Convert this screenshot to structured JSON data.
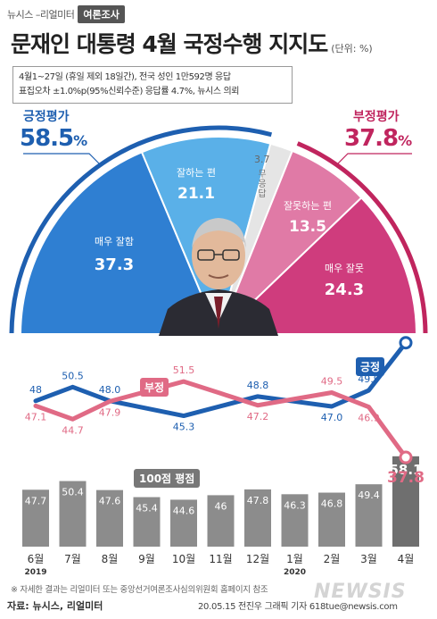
{
  "header": {
    "brand_main": "뉴시스 –리얼미터",
    "brand_tag": "여론조사",
    "title": "문재인 대통령 4월 국정수행 지지도",
    "unit": "(단위: %)"
  },
  "survey_info": {
    "line1": "4월1~27일 (휴일 제외 18일간), 전국 성인 1만592명 응답",
    "line2": "표집오차 ±1.0%p(95%신뢰수준) 응답률 4.7%, 뉴시스 의뢰"
  },
  "positive": {
    "label": "긍정평가",
    "value": "58.5",
    "pct": "%",
    "color": "#1e5fb0"
  },
  "negative": {
    "label": "부정평가",
    "value": "37.8",
    "pct": "%",
    "color": "#c0255e"
  },
  "segments": {
    "very_good": {
      "label": "매우 잘함",
      "value": "37.3",
      "color": "#2f7fd2"
    },
    "good": {
      "label": "잘하는 편",
      "value": "21.1",
      "color": "#5ab0e8"
    },
    "no_answer": {
      "label": "무응답",
      "chars": [
        "무",
        "응",
        "답"
      ],
      "value": "3.7",
      "color": "#e5e5e5"
    },
    "bad": {
      "label": "잘못하는 편",
      "value": "13.5",
      "color": "#e07aa6"
    },
    "very_bad": {
      "label": "매우 잘못",
      "value": "24.3",
      "color": "#cf3c7d"
    }
  },
  "chart_data": {
    "type": "line",
    "x": [
      "6월",
      "7월",
      "8월",
      "9월",
      "10월",
      "11월",
      "12월",
      "1월",
      "2월",
      "3월",
      "4월"
    ],
    "year_labels": {
      "0": "2019",
      "7": "2020"
    },
    "series": [
      {
        "name": "긍정",
        "color": "#1e5fb0",
        "values": [
          48,
          50.5,
          48.0,
          null,
          45.3,
          null,
          48.8,
          null,
          47.0,
          49.9,
          58.5
        ],
        "labels": [
          "48",
          "50.5",
          "48.0",
          "",
          "45.3",
          "",
          "48.8",
          "",
          "47.0",
          "49.9",
          "58.5"
        ]
      },
      {
        "name": "부정",
        "color": "#e06a85",
        "values": [
          47.1,
          44.7,
          47.9,
          null,
          51.5,
          null,
          47.2,
          null,
          49.5,
          46.9,
          37.8
        ],
        "labels": [
          "47.1",
          "44.7",
          "47.9",
          "",
          "51.5",
          "",
          "47.2",
          "",
          "49.5",
          "46.9",
          "37.8"
        ]
      }
    ],
    "bar_series": {
      "name": "100점 평점",
      "values": [
        47.7,
        50.4,
        47.6,
        45.4,
        44.6,
        46,
        47.8,
        46.3,
        46.8,
        49.4,
        58.1
      ],
      "labels": [
        "47.7",
        "50.4",
        "47.6",
        "45.4",
        "44.6",
        "46",
        "47.8",
        "46.3",
        "46.8",
        "49.4",
        "58.1"
      ],
      "color": "#8c8c8c",
      "highlight_color": "#6f6f6f"
    },
    "legend_pos": "긍정",
    "legend_neg": "부정"
  },
  "footer": {
    "note": "※ 자세한 결과는 리얼미터 또는 중앙선거여론조사심의위원회 홈페이지 참조",
    "source": "자료: 뉴시스, 리얼미터",
    "credit": "20.05.15 전진우 그래픽 기자 618tue@newsis.com",
    "watermark": "NEWSIS"
  }
}
